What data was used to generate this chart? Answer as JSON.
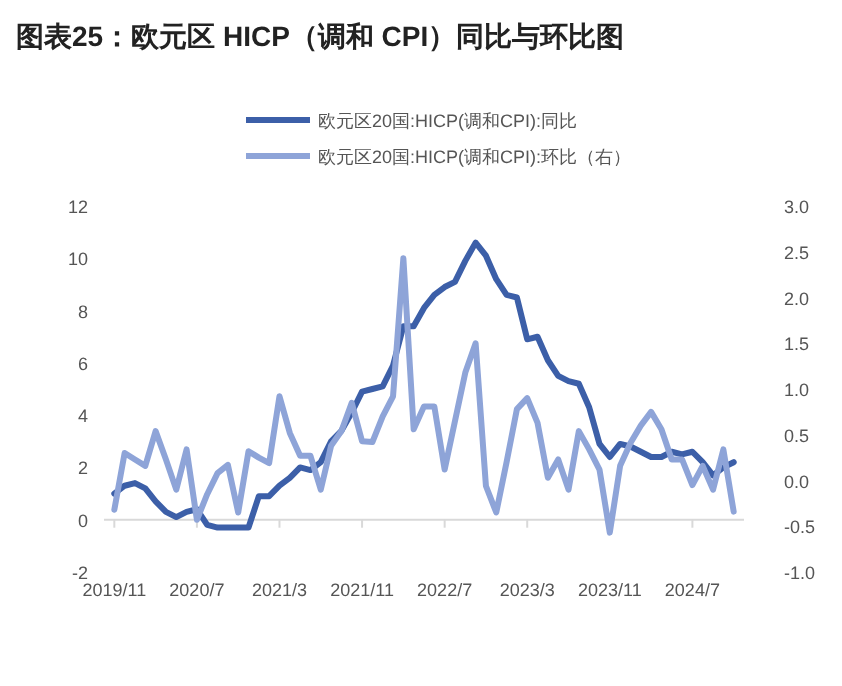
{
  "chart_data": {
    "type": "line",
    "title": "图表25：欧元区 HICP（调和 CPI）同比与环比图",
    "x": [
      "2019-11",
      "2019-12",
      "2020-01",
      "2020-02",
      "2020-03",
      "2020-04",
      "2020-05",
      "2020-06",
      "2020-07",
      "2020-08",
      "2020-09",
      "2020-10",
      "2020-11",
      "2020-12",
      "2021-01",
      "2021-02",
      "2021-03",
      "2021-04",
      "2021-05",
      "2021-06",
      "2021-07",
      "2021-08",
      "2021-09",
      "2021-10",
      "2021-11",
      "2021-12",
      "2022-01",
      "2022-02",
      "2022-03",
      "2022-04",
      "2022-05",
      "2022-06",
      "2022-07",
      "2022-08",
      "2022-09",
      "2022-10",
      "2022-11",
      "2022-12",
      "2023-01",
      "2023-02",
      "2023-03",
      "2023-04",
      "2023-05",
      "2023-06",
      "2023-07",
      "2023-08",
      "2023-09",
      "2023-10",
      "2023-11",
      "2023-12",
      "2024-01",
      "2024-02",
      "2024-03",
      "2024-04",
      "2024-05",
      "2024-06",
      "2024-07",
      "2024-08",
      "2024-09",
      "2024-10",
      "2024-11"
    ],
    "series": [
      {
        "name": "欧元区20国:HICP(调和CPI):同比",
        "color": "#3c5fa8",
        "values": [
          1.0,
          1.3,
          1.4,
          1.2,
          0.7,
          0.3,
          0.1,
          0.3,
          0.4,
          -0.2,
          -0.3,
          -0.3,
          -0.3,
          -0.3,
          0.9,
          0.9,
          1.3,
          1.6,
          2.0,
          1.9,
          2.2,
          3.0,
          3.4,
          4.1,
          4.9,
          5.0,
          5.1,
          5.9,
          7.4,
          7.4,
          8.1,
          8.6,
          8.9,
          9.1,
          9.9,
          10.6,
          10.1,
          9.2,
          8.6,
          8.5,
          6.9,
          7.0,
          6.1,
          5.5,
          5.3,
          5.2,
          4.3,
          2.9,
          2.4,
          2.9,
          2.8,
          2.6,
          2.4,
          2.4,
          2.6,
          2.5,
          2.6,
          2.2,
          1.7,
          2.0,
          2.2
        ]
      },
      {
        "name": "欧元区20国:HICP(调和CPI):环比（右）",
        "color": "#8ea4d8",
        "axis": "y2",
        "values": [
          -0.32,
          0.3,
          0.23,
          0.16,
          0.54,
          0.23,
          -0.1,
          0.34,
          -0.43,
          -0.15,
          0.08,
          0.17,
          -0.35,
          0.32,
          0.25,
          0.19,
          0.92,
          0.52,
          0.27,
          0.27,
          -0.1,
          0.38,
          0.54,
          0.85,
          0.43,
          0.42,
          0.7,
          0.92,
          2.43,
          0.56,
          0.81,
          0.81,
          0.12,
          0.65,
          1.18,
          1.5,
          -0.06,
          -0.35,
          0.2,
          0.78,
          0.9,
          0.63,
          0.03,
          0.23,
          -0.1,
          0.54,
          0.34,
          0.12,
          -0.57,
          0.16,
          0.41,
          0.6,
          0.75,
          0.56,
          0.23,
          0.23,
          -0.05,
          0.16,
          -0.1,
          0.34,
          -0.34
        ]
      }
    ],
    "xlim": [
      "2019-10",
      "2024-12"
    ],
    "xticks": [
      {
        "value": "2019-11",
        "label": "2019/11"
      },
      {
        "value": "2020-07",
        "label": "2020/7"
      },
      {
        "value": "2021-03",
        "label": "2021/3"
      },
      {
        "value": "2021-11",
        "label": "2021/11"
      },
      {
        "value": "2022-07",
        "label": "2022/7"
      },
      {
        "value": "2023-03",
        "label": "2023/3"
      },
      {
        "value": "2023-11",
        "label": "2023/11"
      },
      {
        "value": "2024-07",
        "label": "2024/7"
      }
    ],
    "ylim": [
      -2,
      12
    ],
    "yticks": [
      -2,
      0,
      2,
      4,
      6,
      8,
      10,
      12
    ],
    "y2lim": [
      -1,
      3
    ],
    "y2ticks": [
      {
        "value": -1,
        "label": "-1.0"
      },
      {
        "value": -0.5,
        "label": "-0.5"
      },
      {
        "value": 0,
        "label": "0.0"
      },
      {
        "value": 0.5,
        "label": "0.5"
      },
      {
        "value": 1,
        "label": "1.0"
      },
      {
        "value": 1.5,
        "label": "1.5"
      },
      {
        "value": 2,
        "label": "2.0"
      },
      {
        "value": 2.5,
        "label": "2.5"
      },
      {
        "value": 3,
        "label": "3.0"
      }
    ],
    "legend": "top",
    "marker": "none",
    "line_style": "solid"
  }
}
